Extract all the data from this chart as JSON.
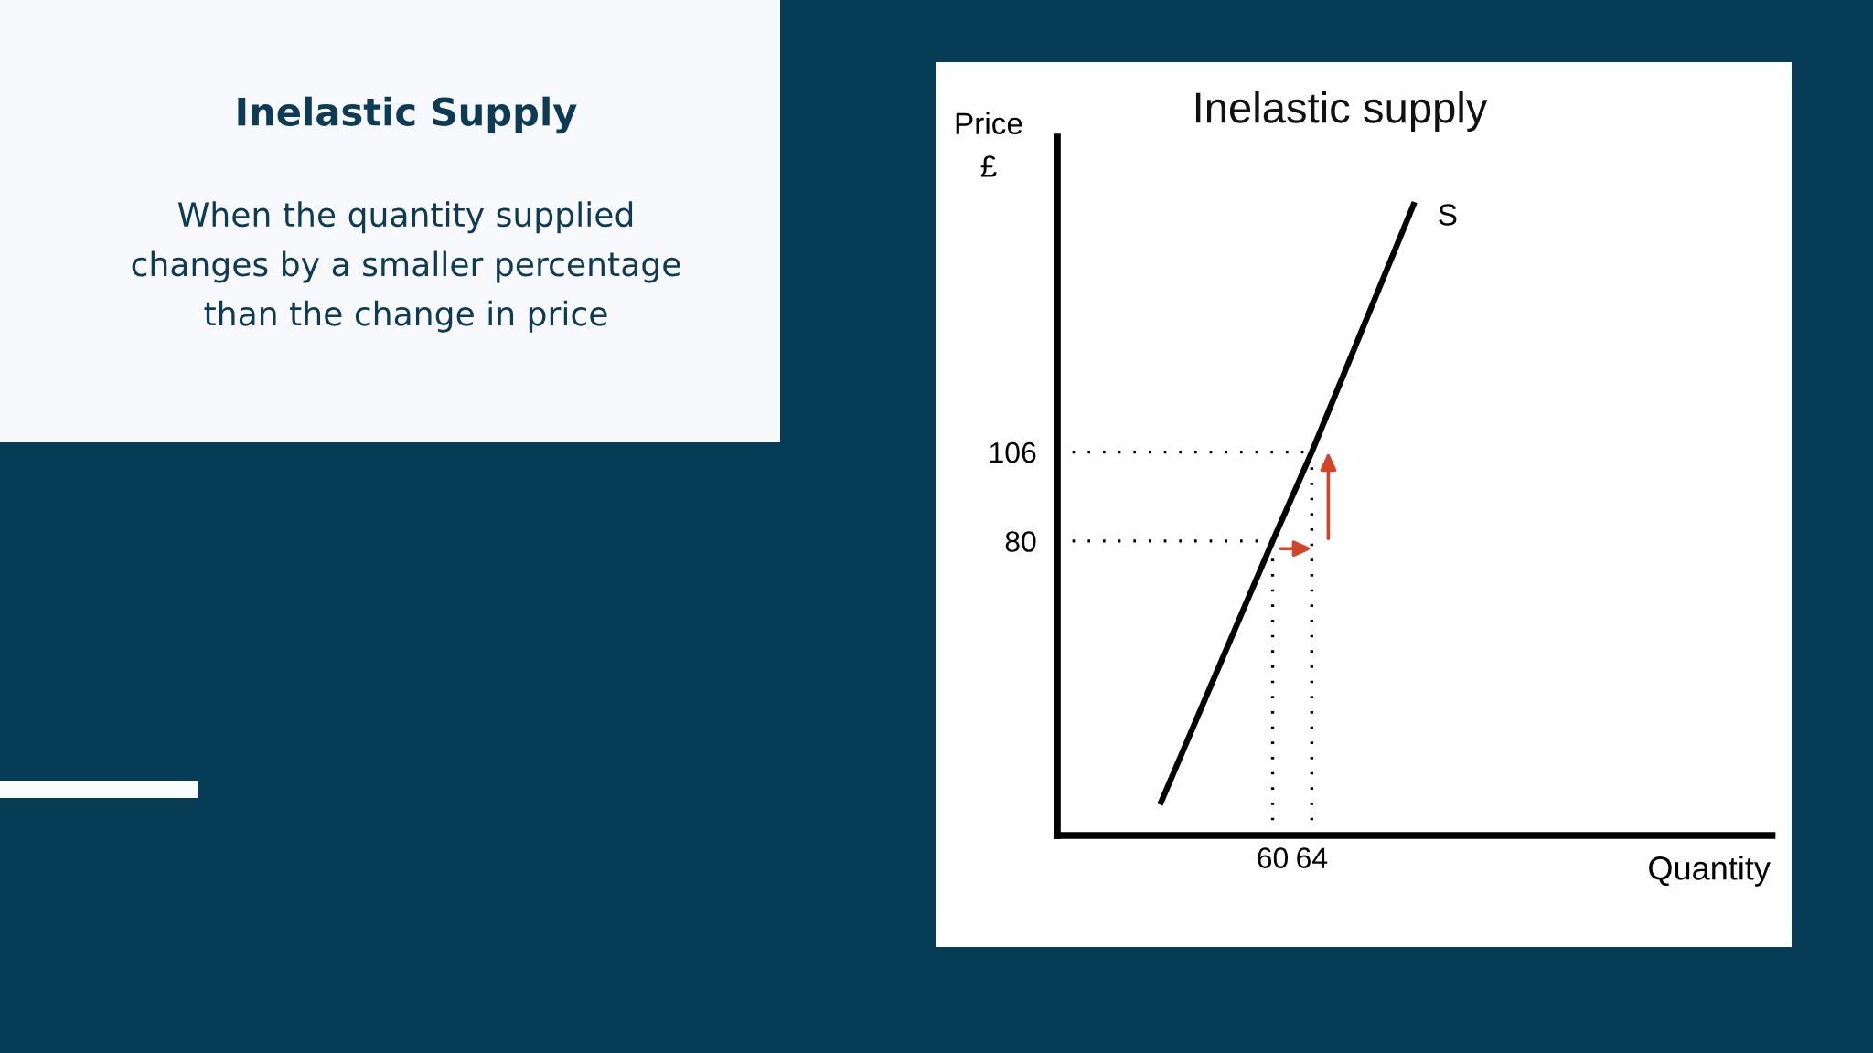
{
  "chart_data": {
    "type": "line",
    "title": "Inelastic Supply",
    "subtitle": "When the quantity supplied\nchanges by a smaller percentage\nthan the change in price",
    "annotations": [
      "Inelastic supply"
    ],
    "xlabel": "Quantity",
    "ylabel": "Price\n£",
    "x": [
      48.5,
      60,
      64,
      74.5
    ],
    "series": [
      {
        "name": "S",
        "color": "#000000",
        "values": [
          3,
          80,
          106,
          179
        ]
      }
    ],
    "xlim": [
      38,
      111
    ],
    "ylim": [
      -6,
      198
    ],
    "xticks": [
      60,
      64
    ],
    "yticks": [
      80,
      106
    ],
    "ref_lines": [
      {
        "axis": "y",
        "value": 80,
        "color": "#000000",
        "line_style": "dotted"
      },
      {
        "axis": "y",
        "value": 106,
        "color": "#000000",
        "line_style": "dotted"
      },
      {
        "axis": "x",
        "value": 60,
        "color": "#000000",
        "line_style": "dotted"
      },
      {
        "axis": "x",
        "value": 64,
        "color": "#000000",
        "line_style": "dotted"
      }
    ],
    "grid": false,
    "legend": false,
    "marker": "none",
    "line_style": "solid"
  }
}
